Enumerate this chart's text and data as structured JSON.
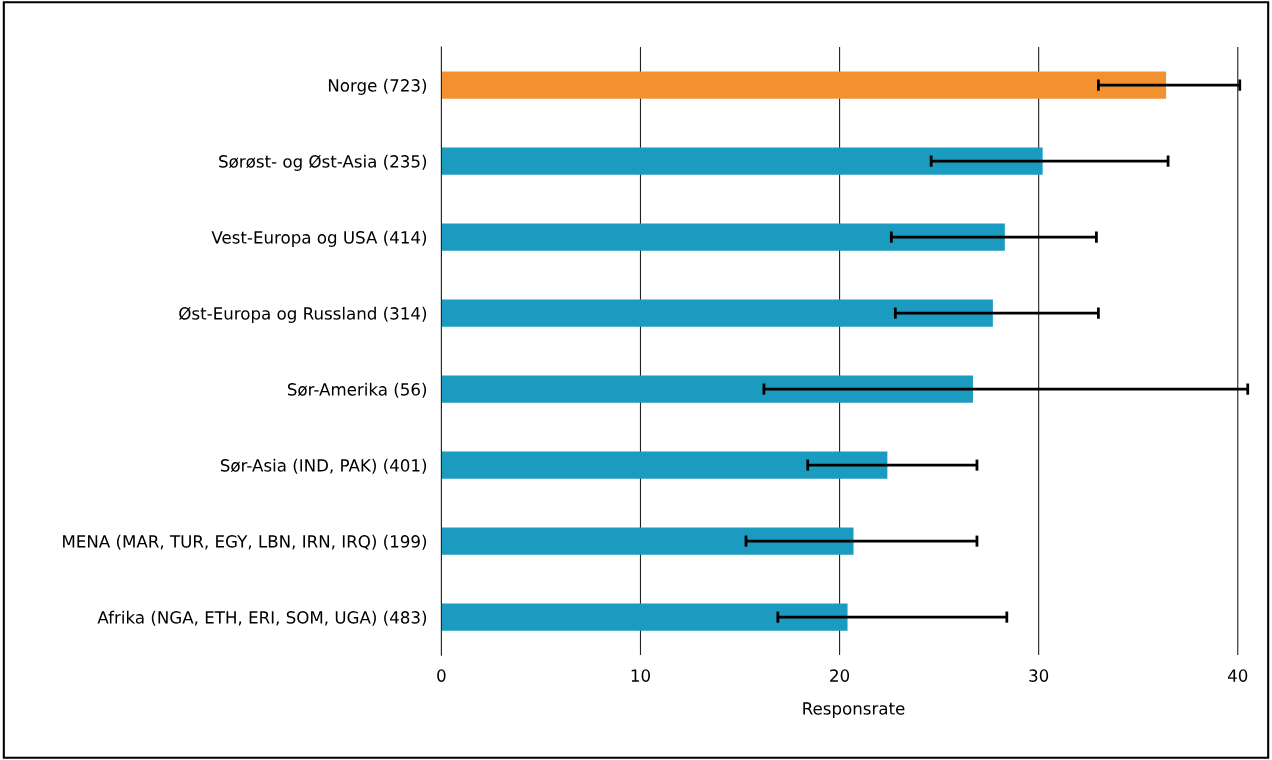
{
  "chart_data": {
    "type": "bar",
    "orientation": "horizontal",
    "xlabel": "Responsrate",
    "categories": [
      "Norge (723)",
      "Sørøst- og Øst-Asia (235)",
      "Vest-Europa og USA (414)",
      "Øst-Europa og Russland (314)",
      "Sør-Amerika (56)",
      "Sør-Asia (IND, PAK) (401)",
      "MENA (MAR, TUR, EGY, LBN, IRN, IRQ) (199)",
      "Afrika (NGA, ETH, ERI, SOM, UGA) (483)"
    ],
    "values": [
      36.4,
      30.2,
      28.3,
      27.7,
      26.7,
      22.4,
      20.7,
      20.4
    ],
    "colors": [
      "#f39130",
      "#1b9bbf",
      "#1b9bbf",
      "#1b9bbf",
      "#1b9bbf",
      "#1b9bbf",
      "#1b9bbf",
      "#1b9bbf"
    ],
    "errors": [
      [
        33.0,
        40.1
      ],
      [
        24.6,
        36.5
      ],
      [
        22.6,
        32.9
      ],
      [
        22.8,
        33.0
      ],
      [
        16.2,
        40.5
      ],
      [
        18.4,
        26.9
      ],
      [
        15.3,
        26.9
      ],
      [
        16.9,
        28.4
      ]
    ],
    "xlim": [
      0,
      41.4
    ],
    "xticks": [
      0,
      10,
      20,
      30,
      40
    ],
    "grid": "x"
  }
}
